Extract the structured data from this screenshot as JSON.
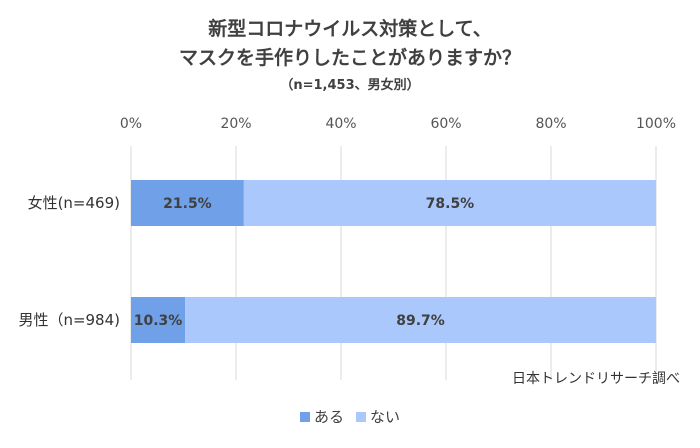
{
  "title_line1": "新型コロナウイルス対策として、",
  "title_line2": "マスクを手作りしたことがありますか？",
  "subtitle": "（n=1,453、男女別）",
  "source": "日本トレンドリサーチ調べ",
  "colors": {
    "aru": "#6fa0e8",
    "nai": "#aac8fb",
    "grid": "#d9d9d9"
  },
  "chart_data": {
    "type": "bar",
    "orientation": "horizontal",
    "stacked": true,
    "percent_stacked": true,
    "categories": [
      "女性(n=469)",
      "男性（n=984)"
    ],
    "series": [
      {
        "name": "ある",
        "values": [
          21.5,
          10.3
        ],
        "labels": [
          "21.5%",
          "10.3%"
        ]
      },
      {
        "name": "ない",
        "values": [
          78.5,
          89.7
        ],
        "labels": [
          "78.5%",
          "89.7%"
        ]
      }
    ],
    "xlim": [
      0,
      100
    ],
    "x_ticks": [
      "0%",
      "20%",
      "40%",
      "60%",
      "80%",
      "100%"
    ],
    "xaxis_position": "top",
    "grid": true,
    "legend_position": "bottom"
  }
}
